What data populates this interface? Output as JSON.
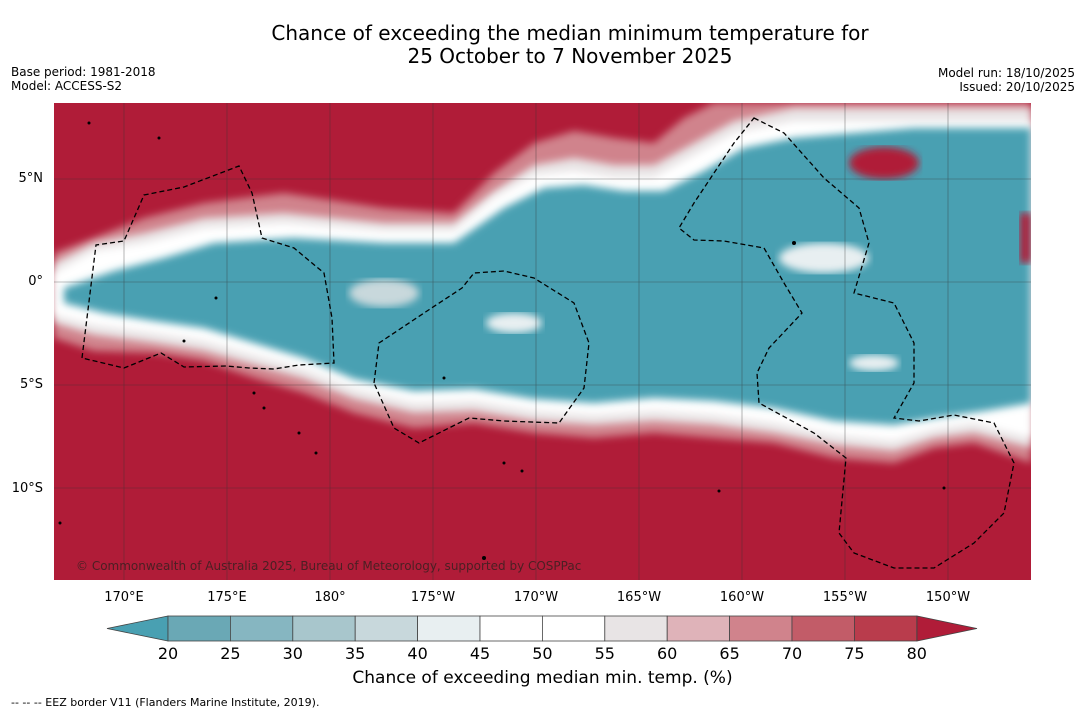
{
  "title": {
    "line1": "Chance of exceeding the median minimum temperature for",
    "line2": "25 October to 7 November 2025"
  },
  "meta_left": {
    "base_period": "Base period: 1981-2018",
    "model": "Model: ACCESS-S2"
  },
  "meta_right": {
    "model_run": "Model run: 18/10/2025",
    "issued": "Issued: 20/10/2025"
  },
  "axes": {
    "lat_labels": [
      "5°N",
      "0°",
      "5°S",
      "10°S"
    ],
    "lon_labels": [
      "170°E",
      "175°E",
      "180°",
      "175°W",
      "170°W",
      "165°W",
      "160°W",
      "155°W",
      "150°W"
    ]
  },
  "copyright": "© Commonwealth of Australia 2025, Bureau of Meteorology, supported by COSPPac",
  "colorbar": {
    "title": "Chance of exceeding median min. temp. (%)",
    "labels": [
      "20",
      "25",
      "30",
      "35",
      "40",
      "45",
      "50",
      "55",
      "60",
      "65",
      "70",
      "75",
      "80"
    ],
    "colors": [
      "#6aa8b5",
      "#86b6c1",
      "#a8c6cc",
      "#c8d8dc",
      "#e8eff1",
      "#ffffff",
      "#ffffff",
      "#e8e4e5",
      "#dfb3b9",
      "#d0838c",
      "#c25c68",
      "#b93c4c"
    ],
    "low_color": "#49a0b2",
    "high_color": "#b01c38"
  },
  "map_colors": {
    "red": "#b01c38",
    "teal": "#49a0b2"
  },
  "eez_note": "--  --  -- EEZ border V11 (Flanders Marine Institute, 2019)."
}
